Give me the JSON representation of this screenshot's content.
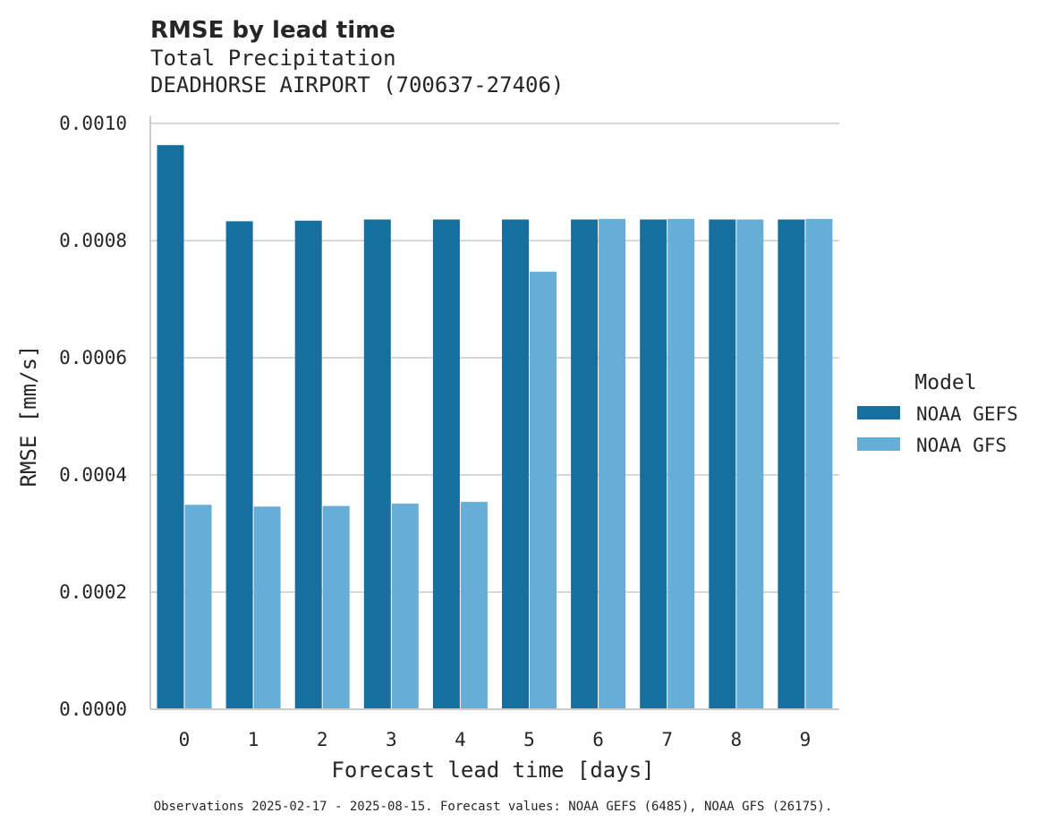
{
  "chart_data": {
    "type": "bar",
    "title": "RMSE by lead time",
    "subtitle_lines": [
      "Total Precipitation",
      "DEADHORSE AIRPORT (700637-27406)"
    ],
    "xlabel": "Forecast lead time [days]",
    "ylabel": "RMSE [mm/s]",
    "categories": [
      "0",
      "1",
      "2",
      "3",
      "4",
      "5",
      "6",
      "7",
      "8",
      "9"
    ],
    "ylim": [
      0,
      0.001
    ],
    "yticks": [
      0,
      0.0002,
      0.0004,
      0.0006,
      0.0008,
      0.001
    ],
    "ytick_labels": [
      "0.0000",
      "0.0002",
      "0.0004",
      "0.0006",
      "0.0008",
      "0.0010"
    ],
    "grid": true,
    "legend": {
      "title": "Model",
      "placement": "right"
    },
    "series": [
      {
        "name": "NOAA GEFS",
        "color": "#176fa0",
        "values": [
          0.000963,
          0.000833,
          0.000834,
          0.000836,
          0.000836,
          0.000836,
          0.000836,
          0.000836,
          0.000836,
          0.000836
        ]
      },
      {
        "name": "NOAA GFS",
        "color": "#66aed7",
        "values": [
          0.000349,
          0.000346,
          0.000347,
          0.000351,
          0.000354,
          0.000747,
          0.000837,
          0.000837,
          0.000836,
          0.000837
        ]
      }
    ],
    "footnote": "Observations 2025-02-17 - 2025-08-15. Forecast values: NOAA GEFS (6485), NOAA GFS (26175)."
  }
}
